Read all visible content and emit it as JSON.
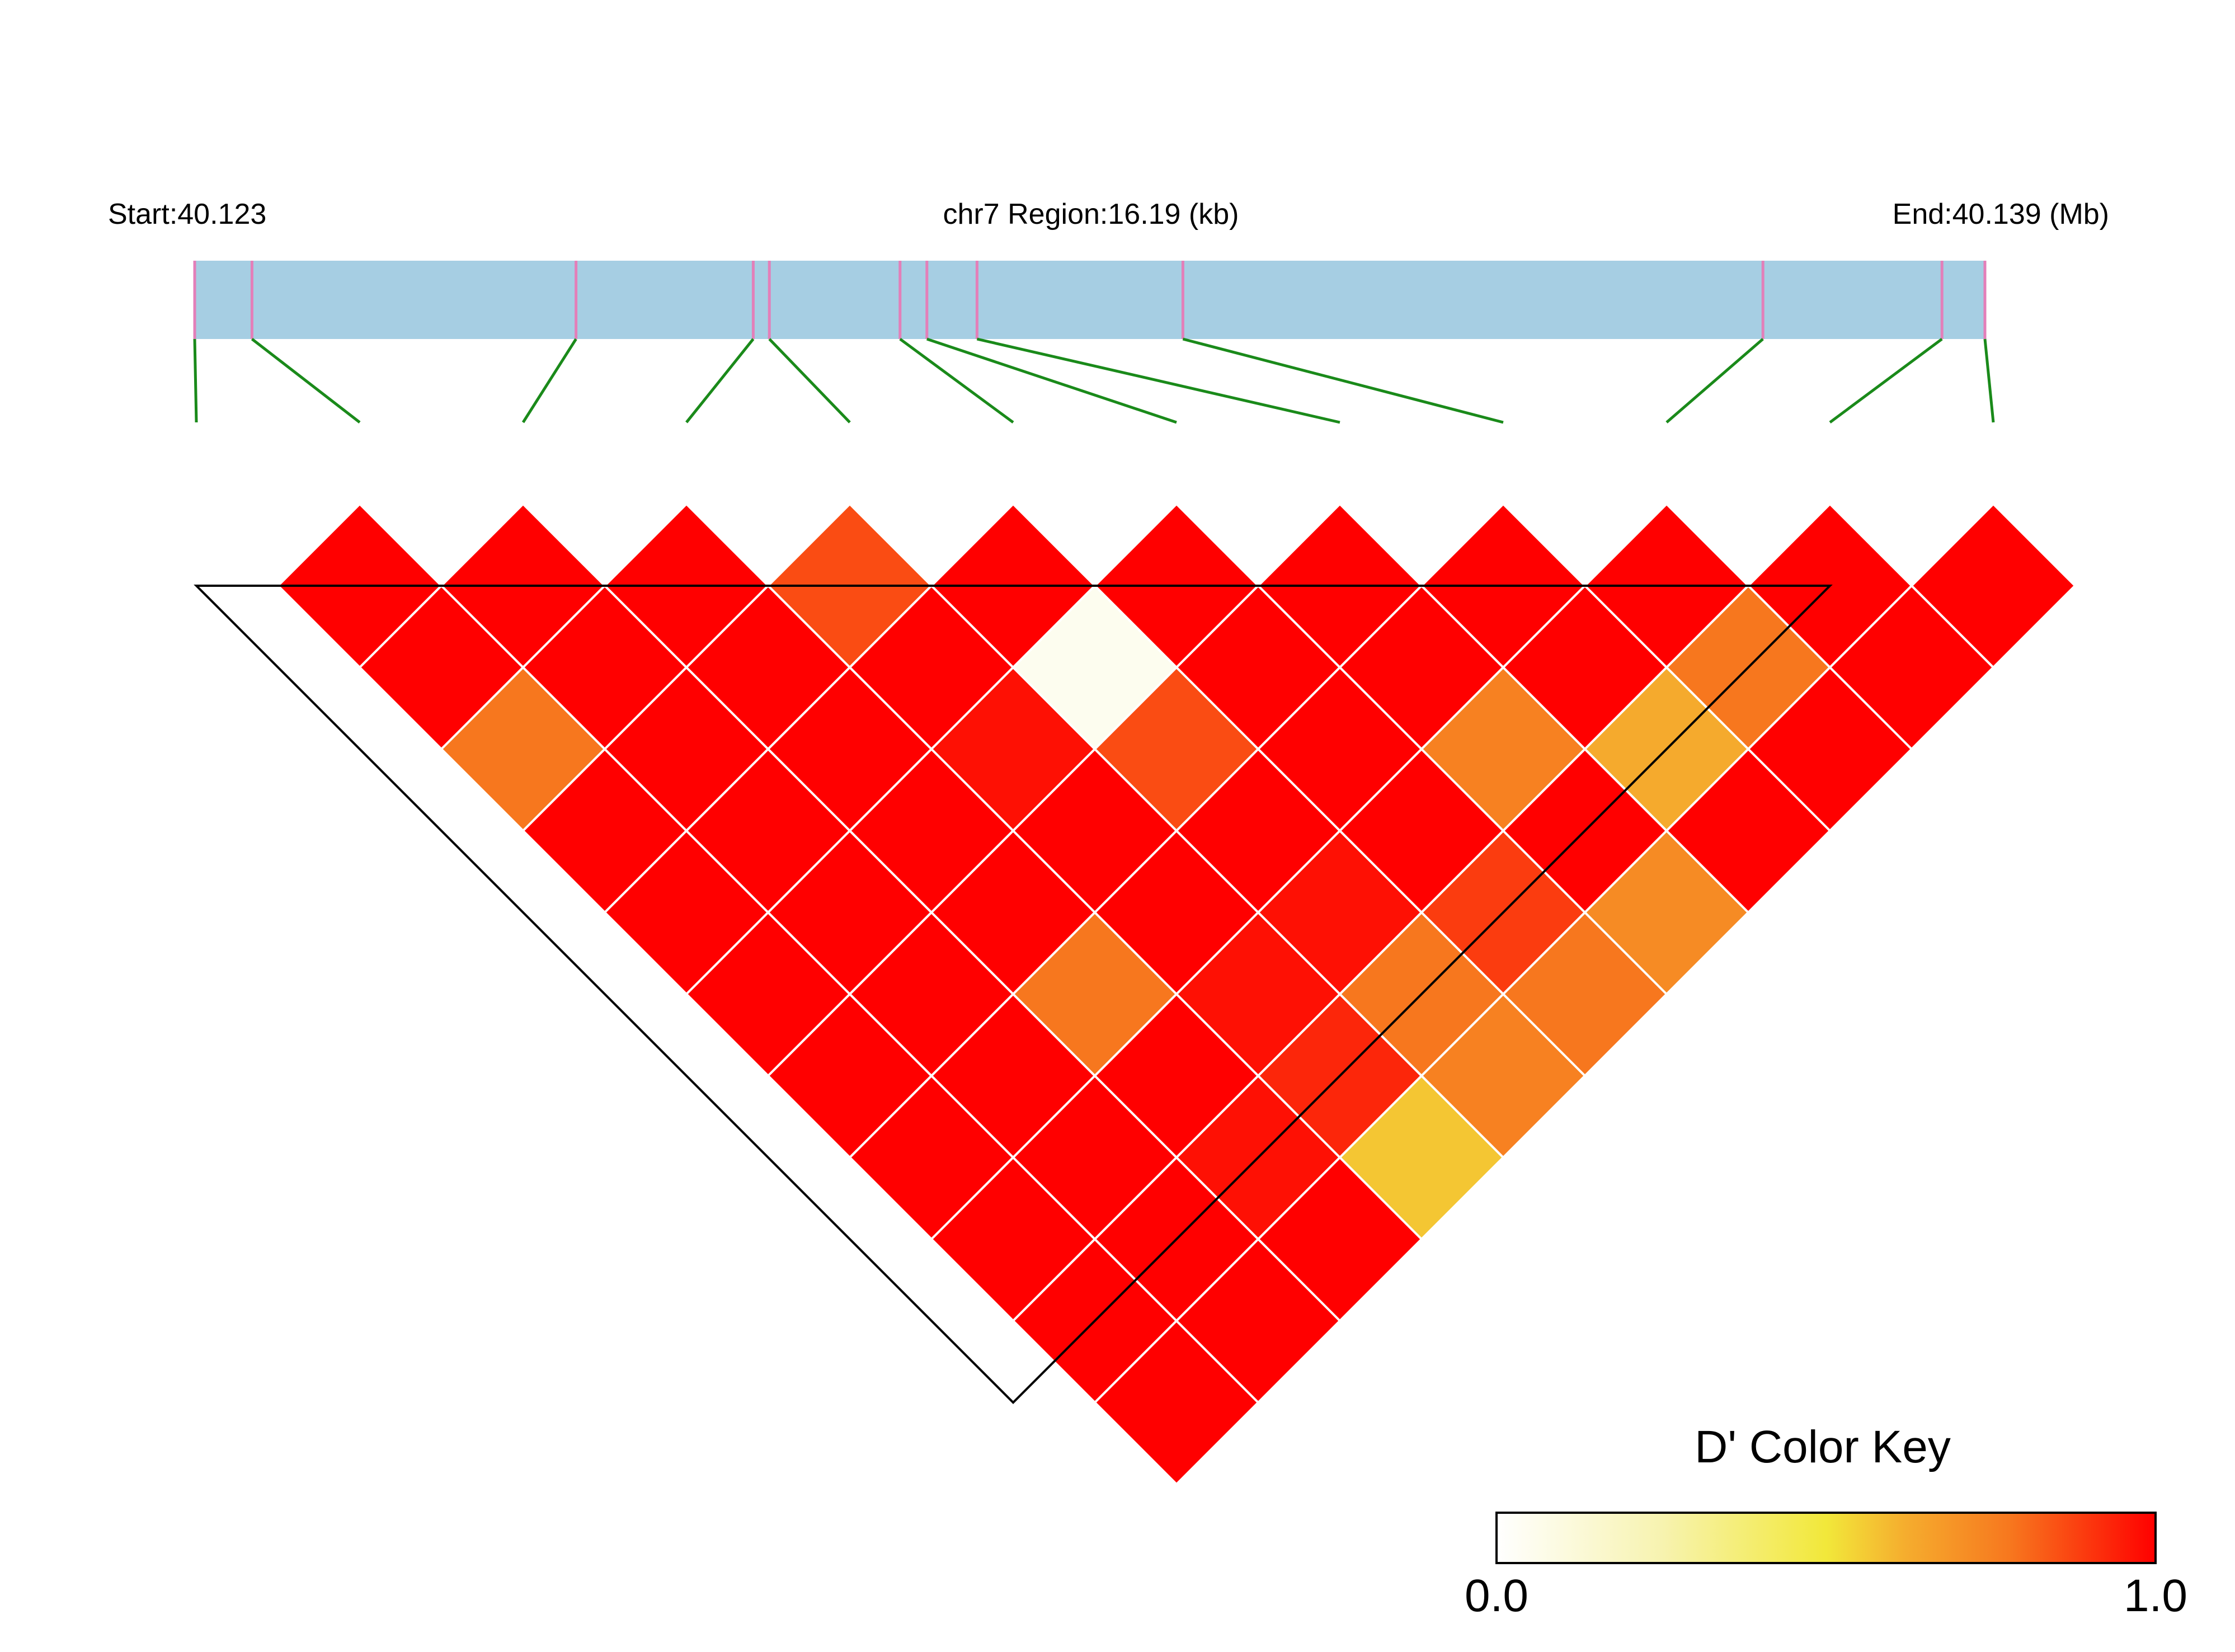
{
  "header": {
    "start_label": "Start:40.123",
    "region_label": "chr7 Region:16.19 (kb)",
    "end_label": "End:40.139 (Mb)"
  },
  "colors": {
    "track": "#a6cee3",
    "snp_tick": "#e37fb9",
    "connector": "#1a8a1a",
    "cell_border": "#ffffff",
    "block_outline": "#000000"
  },
  "color_key": {
    "title": "D' Color Key",
    "min_label": "0.0",
    "max_label": "1.0",
    "stops": [
      "#ffffff",
      "#f2ee44",
      "#f7931e",
      "#ff0000"
    ]
  },
  "chart_data": {
    "type": "heatmap",
    "description_axis": "pairwise D' between SNPs",
    "region": {
      "chromosome": "chr7",
      "start_mb": 40.123,
      "end_mb": 40.139,
      "length_kb": 16.19
    },
    "snp_count": 12,
    "snp_positions_fraction": [
      0.0,
      0.032,
      0.213,
      0.312,
      0.321,
      0.394,
      0.409,
      0.437,
      0.552,
      0.876,
      0.976,
      1.0
    ],
    "dprime_matrix": [
      [
        null,
        1.0,
        1.0,
        0.78,
        1.0,
        1.0,
        1.0,
        1.0,
        1.0,
        1.0,
        1.0,
        1.0
      ],
      [
        null,
        null,
        1.0,
        1.0,
        1.0,
        1.0,
        1.0,
        1.0,
        1.0,
        1.0,
        1.0,
        1.0
      ],
      [
        null,
        null,
        null,
        1.0,
        1.0,
        1.0,
        1.0,
        1.0,
        0.78,
        1.0,
        0.97,
        1.0
      ],
      [
        null,
        null,
        null,
        null,
        0.86,
        1.0,
        0.97,
        1.0,
        1.0,
        0.97,
        0.93,
        0.57
      ],
      [
        null,
        null,
        null,
        null,
        null,
        1.0,
        0.05,
        0.86,
        1.0,
        0.97,
        0.78,
        0.75
      ],
      [
        null,
        null,
        null,
        null,
        null,
        null,
        1.0,
        1.0,
        1.0,
        1.0,
        0.89,
        0.78
      ],
      [
        null,
        null,
        null,
        null,
        null,
        null,
        null,
        1.0,
        1.0,
        0.75,
        1.0,
        0.72
      ],
      [
        null,
        null,
        null,
        null,
        null,
        null,
        null,
        null,
        1.0,
        1.0,
        0.63,
        1.0
      ],
      [
        null,
        null,
        null,
        null,
        null,
        null,
        null,
        null,
        null,
        1.0,
        0.78,
        1.0
      ],
      [
        null,
        null,
        null,
        null,
        null,
        null,
        null,
        null,
        null,
        null,
        1.0,
        1.0
      ],
      [
        null,
        null,
        null,
        null,
        null,
        null,
        null,
        null,
        null,
        null,
        null,
        1.0
      ],
      [
        null,
        null,
        null,
        null,
        null,
        null,
        null,
        null,
        null,
        null,
        null,
        null
      ]
    ],
    "haplotype_block": {
      "first_snp": 1,
      "last_snp": 11
    }
  }
}
